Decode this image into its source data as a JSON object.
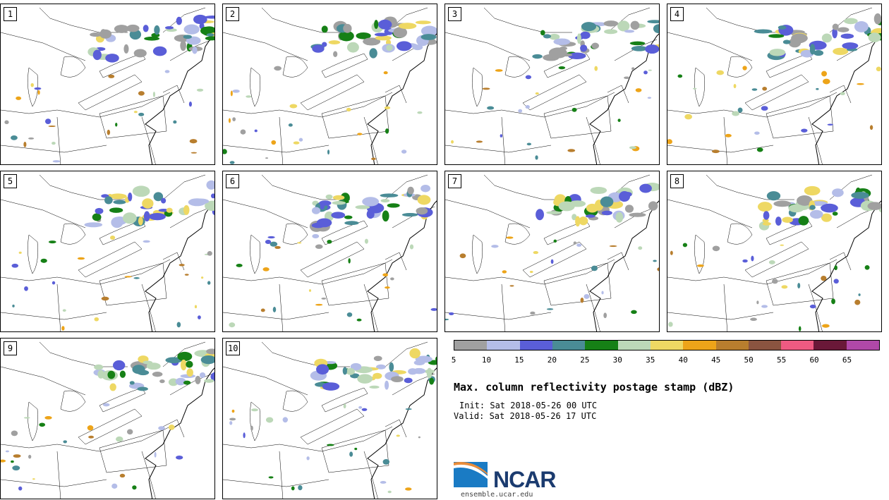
{
  "panels": [
    "1",
    "2",
    "3",
    "4",
    "5",
    "6",
    "7",
    "8",
    "9",
    "10"
  ],
  "colorbar": {
    "ticks": [
      "5",
      "10",
      "15",
      "20",
      "25",
      "30",
      "35",
      "40",
      "45",
      "50",
      "55",
      "60",
      "65"
    ],
    "colors": [
      "#a0a0a0",
      "#b4bde8",
      "#5a5ed8",
      "#4a8c96",
      "#168016",
      "#bcd8b8",
      "#eed863",
      "#eda419",
      "#b87e2e",
      "#8a5440",
      "#ee5a82",
      "#6a1838",
      "#b048a8"
    ]
  },
  "title": "Max. column reflectivity postage stamp (dBZ)",
  "init": "Init: Sat 2018-05-26 00 UTC",
  "valid": "Valid: Sat 2018-05-26 17 UTC",
  "logo": {
    "name": "NCAR",
    "site": "ensemble.ucar.edu"
  }
}
